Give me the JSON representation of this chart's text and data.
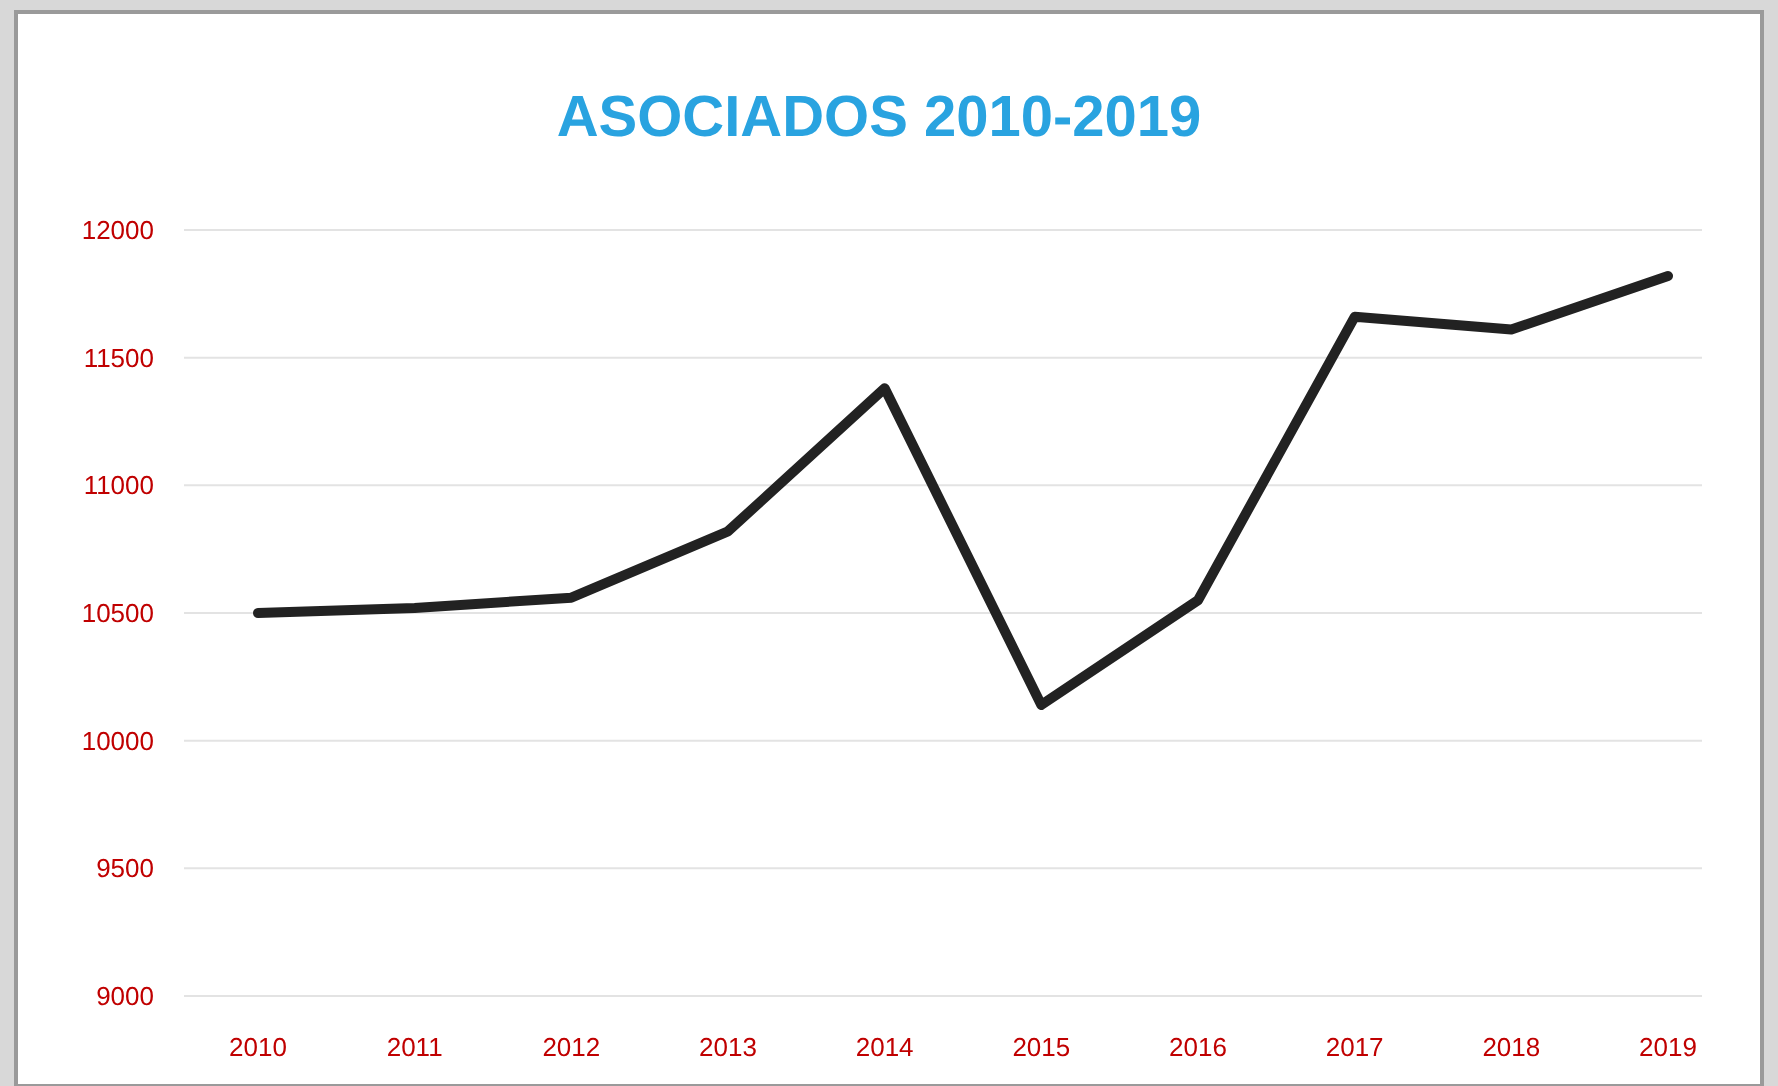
{
  "chart_data": {
    "type": "line",
    "title": "ASOCIADOS 2010-2019",
    "categories": [
      "2010",
      "2011",
      "2012",
      "2013",
      "2014",
      "2015",
      "2016",
      "2017",
      "2018",
      "2019"
    ],
    "series": [
      {
        "color": "#222222",
        "values": [
          10500,
          10520,
          10560,
          10820,
          11380,
          10140,
          10550,
          11660,
          11610,
          11820
        ]
      }
    ],
    "ylim": [
      9000,
      12000
    ],
    "yticks": [
      9000,
      9500,
      10000,
      10500,
      11000,
      11500,
      12000
    ],
    "grid": "y",
    "marker": "none",
    "line_style": "solid"
  }
}
